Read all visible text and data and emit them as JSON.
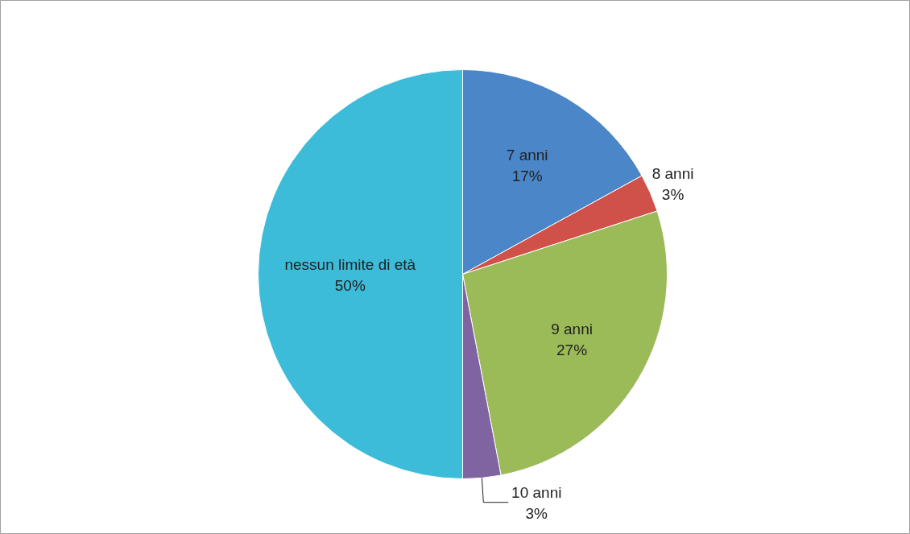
{
  "chart_data": {
    "type": "pie",
    "categories": [
      "7 anni",
      "8 anni",
      "9 anni",
      "10 anni",
      "nessun limite di età"
    ],
    "values": [
      17,
      3,
      27,
      3,
      50
    ],
    "colors": [
      "#4a86c8",
      "#d0504a",
      "#9bbb59",
      "#8064a2",
      "#3cbcd8"
    ],
    "value_labels": [
      "17%",
      "3%",
      "27%",
      "3%",
      "50%"
    ]
  }
}
